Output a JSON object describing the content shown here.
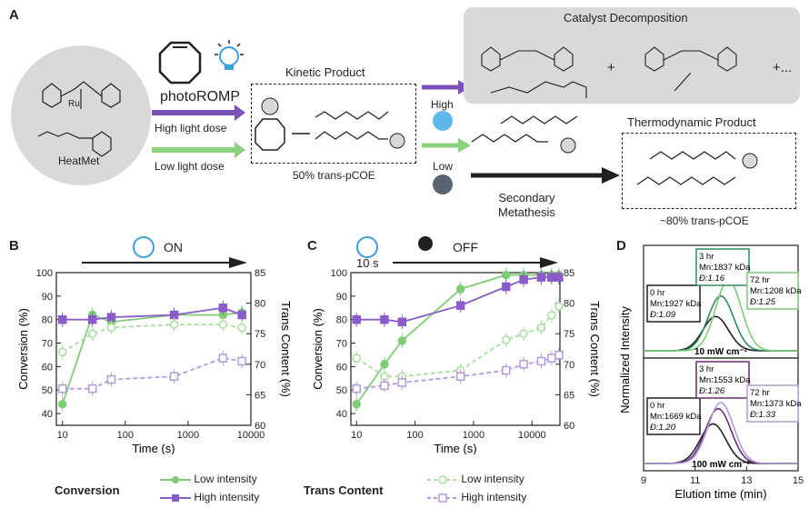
{
  "panel_letters": {
    "a": "A",
    "b": "B",
    "c": "C",
    "d": "D"
  },
  "scheme": {
    "catalyst_name": "HeatMet",
    "photo_label": "photoROMP",
    "high_dose": "High light dose",
    "low_dose": "Low light dose",
    "kinetic_title": "Kinetic Product",
    "kinetic_sub": "50% trans-pCOE",
    "high_label": "High",
    "low_label": "Low",
    "decomp_title": "Catalyst Decomposition",
    "plus1": "+",
    "plus2": "+...",
    "secondary": "Secondary\nMetathesis",
    "thermo_title": "Thermodynamic Product",
    "thermo_sub": "~80% trans-pCOE",
    "ru": "Ru"
  },
  "panel_b": {
    "state_label": "ON"
  },
  "panel_c": {
    "state_label": "OFF",
    "time_label": "10 s"
  },
  "legend": {
    "conversion": "Conversion",
    "trans": "Trans Content",
    "low": "Low intensity",
    "high": "High intensity"
  },
  "colors": {
    "green": "#7fcc77",
    "purple": "#8a5cc9",
    "lightgreen": "#a8dd9f",
    "lightpurple": "#b49ad9",
    "darkgreen": "#2e8b57",
    "darkpurple": "#6b2a7a"
  },
  "chart_data": [
    {
      "type": "scatter",
      "panel": "B",
      "xlabel": "Time (s)",
      "ylabel": "Conversion (%)",
      "y2label": "Trans Content (%)",
      "xscale": "log",
      "xlim": [
        8,
        10000
      ],
      "ylim": [
        35,
        100
      ],
      "y2lim": [
        60,
        85
      ],
      "xticks": [
        "10",
        "100",
        "1000",
        "10000"
      ],
      "yticks": [
        "40",
        "50",
        "60",
        "70",
        "80",
        "90",
        "100"
      ],
      "y2ticks": [
        "60",
        "65",
        "70",
        "75",
        "80",
        "85"
      ],
      "series": [
        {
          "name": "Low intensity",
          "kind": "conversion",
          "x": [
            10,
            30,
            60,
            600,
            3600,
            7200
          ],
          "y": [
            44,
            82,
            79,
            82,
            82,
            83
          ]
        },
        {
          "name": "High intensity",
          "kind": "conversion",
          "x": [
            10,
            30,
            60,
            600,
            3600,
            7200
          ],
          "y": [
            80,
            80,
            81,
            82,
            85,
            82
          ]
        },
        {
          "name": "Low intensity",
          "kind": "trans",
          "x": [
            10,
            30,
            60,
            600,
            3600,
            7200
          ],
          "y": [
            72,
            75,
            76,
            76.5,
            76.5,
            76
          ]
        },
        {
          "name": "High intensity",
          "kind": "trans",
          "x": [
            10,
            30,
            60,
            600,
            3600,
            7200
          ],
          "y": [
            66,
            66,
            67.5,
            68,
            71,
            70.5
          ]
        }
      ]
    },
    {
      "type": "scatter",
      "panel": "C",
      "xlabel": "Time (s)",
      "ylabel": "Conversion (%)",
      "y2label": "Trans Content (%)",
      "xscale": "log",
      "xlim": [
        8,
        30000
      ],
      "ylim": [
        35,
        100
      ],
      "y2lim": [
        60,
        85
      ],
      "xticks": [
        "10",
        "100",
        "1000",
        "10000"
      ],
      "yticks": [
        "40",
        "50",
        "60",
        "70",
        "80",
        "90",
        "100"
      ],
      "y2ticks": [
        "60",
        "65",
        "70",
        "75",
        "80",
        "85"
      ],
      "series": [
        {
          "name": "Low intensity",
          "kind": "conversion",
          "x": [
            10,
            30,
            60,
            600,
            3600,
            7200,
            14400,
            21600,
            28800
          ],
          "y": [
            44,
            61,
            71,
            93,
            99,
            99,
            99,
            99,
            99
          ]
        },
        {
          "name": "High intensity",
          "kind": "conversion",
          "x": [
            10,
            30,
            60,
            600,
            3600,
            7200,
            14400,
            21600,
            28800
          ],
          "y": [
            80,
            80,
            79,
            86,
            94,
            97,
            98,
            98,
            98
          ]
        },
        {
          "name": "Low intensity",
          "kind": "trans",
          "x": [
            10,
            30,
            60,
            600,
            3600,
            7200,
            14400,
            21600,
            28800
          ],
          "y": [
            71,
            68,
            68,
            69,
            74,
            75,
            76,
            78,
            79.5
          ]
        },
        {
          "name": "High intensity",
          "kind": "trans",
          "x": [
            10,
            30,
            60,
            600,
            3600,
            7200,
            14400,
            21600,
            28800
          ],
          "y": [
            66,
            66.5,
            67,
            68,
            69,
            70,
            70.5,
            71,
            71.5
          ]
        }
      ]
    },
    {
      "type": "line",
      "panel": "D",
      "xlabel": "Elution time (min)",
      "ylabel": "Normalized Intensity",
      "xlim": [
        9,
        15
      ],
      "xticks": [
        "9",
        "11",
        "13",
        "15"
      ],
      "subpanels": [
        {
          "label": "10 mW cm⁻²",
          "traces": [
            {
              "time": "0 hr",
              "mn": "Mn:1927 kDa",
              "d": "Đ:1.09",
              "peak": 11.8,
              "height": 0.45
            },
            {
              "time": "3 hr",
              "mn": "Mn:1837 kDa",
              "d": "Đ:1.16",
              "peak": 12.0,
              "height": 0.72
            },
            {
              "time": "72 hr",
              "mn": "Mn:1208 kDa",
              "d": "Đ:1.25",
              "peak": 12.3,
              "height": 0.93
            }
          ]
        },
        {
          "label": "100 mW cm⁻²",
          "traces": [
            {
              "time": "0 hr",
              "mn": "Mn:1669 kDa",
              "d": "Đ:1.20",
              "peak": 11.7,
              "height": 0.52
            },
            {
              "time": "3 hr",
              "mn": "Mn:1553 kDa",
              "d": "Đ:1.26",
              "peak": 11.9,
              "height": 0.72
            },
            {
              "time": "72 hr",
              "mn": "Mn:1373 kDa",
              "d": "Đ:1.33",
              "peak": 12.0,
              "height": 0.8
            }
          ]
        }
      ]
    }
  ]
}
